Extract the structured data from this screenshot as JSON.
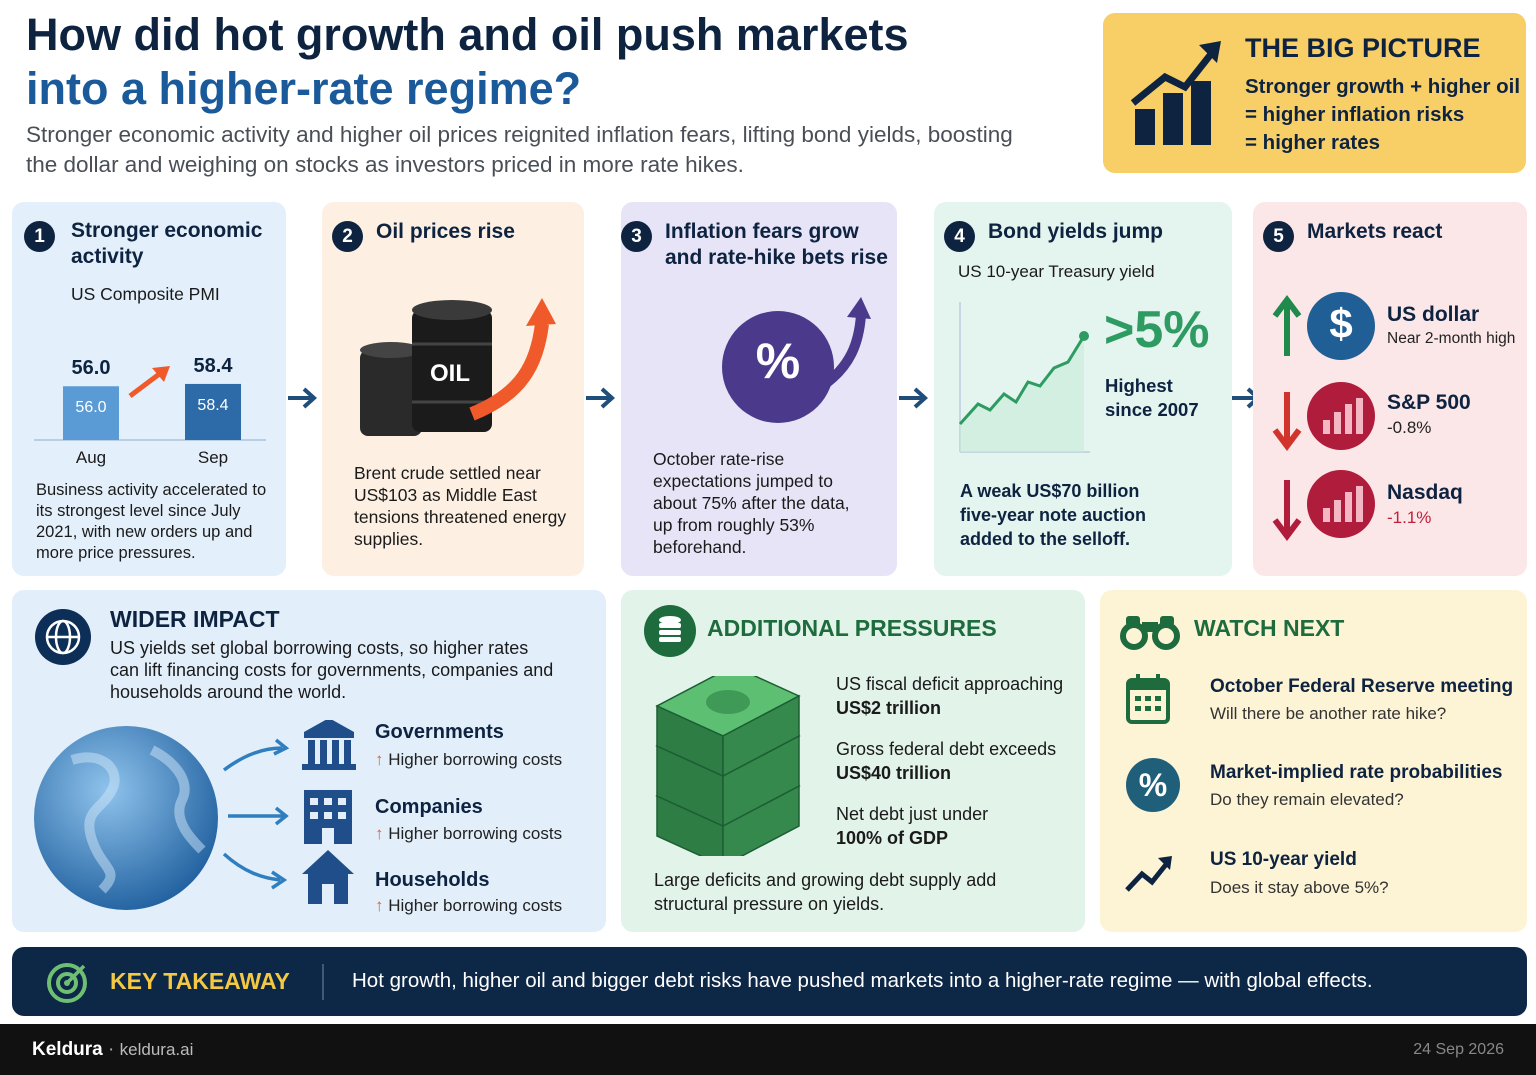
{
  "header": {
    "title_line1": "How did hot growth and oil push markets",
    "title_line2": "into a higher-rate regime?",
    "subtitle": "Stronger economic activity and higher oil prices reignited inflation fears, lifting bond yields, boosting the dollar and weighing on stocks as investors priced in more rate hikes."
  },
  "big_picture": {
    "title": "THE BIG PICTURE",
    "lines": [
      "Stronger growth + higher oil",
      "= higher inflation risks",
      "= higher rates"
    ]
  },
  "steps": [
    {
      "number": 1,
      "title": "Stronger economic activity",
      "subtitle": "US Composite PMI",
      "chart": {
        "type": "bar",
        "categories": [
          "Aug",
          "Sep"
        ],
        "values": [
          56.0,
          58.4
        ],
        "value_labels": [
          "56.0",
          "58.4"
        ],
        "colors": [
          "#5b9bd5",
          "#2c6aa8"
        ]
      },
      "text": "Business activity accelerated to its strongest level since July 2021, with new orders up and more price pressures."
    },
    {
      "number": 2,
      "title": "Oil prices rise",
      "icon_label": "OIL",
      "text": "Brent crude settled near US$103 as Middle East tensions threatened energy supplies."
    },
    {
      "number": 3,
      "title": "Inflation fears grow and rate-hike bets rise",
      "icon_label": "%",
      "text": "October rate-rise expectations jumped to about 75% after the data, up from roughly 53% beforehand."
    },
    {
      "number": 4,
      "title": "Bond yields jump",
      "subtitle": "US 10-year Treasury yield",
      "highlight": ">5%",
      "highlight_note": "Highest since 2007",
      "text": "A weak US$70 billion five-year note auction added to the selloff."
    },
    {
      "number": 5,
      "title": "Markets react",
      "items": [
        {
          "icon_label": "$",
          "name": "US dollar",
          "note": "Near 2-month high"
        },
        {
          "name": "S&P 500",
          "note": "-0.8%"
        },
        {
          "name": "Nasdaq",
          "note": "-1.1%"
        }
      ]
    }
  ],
  "wider_impact": {
    "title": "WIDER IMPACT",
    "text": "US yields set global borrowing costs, so higher rates can lift financing costs for governments, companies and households around the world.",
    "items": [
      {
        "name": "Governments",
        "note": "Higher borrowing costs"
      },
      {
        "name": "Companies",
        "note": "Higher borrowing costs"
      },
      {
        "name": "Households",
        "note": "Higher borrowing costs"
      }
    ]
  },
  "additional_pressures": {
    "title": "ADDITIONAL PRESSURES",
    "items": [
      {
        "text": "US fiscal deficit approaching",
        "bold": "US$2 trillion"
      },
      {
        "text": "Gross federal debt exceeds",
        "bold": "US$40 trillion"
      },
      {
        "text": "Net debt just under",
        "bold": "100% of GDP"
      }
    ],
    "footer": "Large deficits and growing debt supply add structural pressure on yields."
  },
  "watch_next": {
    "title": "WATCH NEXT",
    "items": [
      {
        "title": "October Federal Reserve meeting",
        "question": "Will there be another rate hike?"
      },
      {
        "icon_label": "%",
        "title": "Market-implied rate probabilities",
        "question": "Do they remain elevated?"
      },
      {
        "title": "US 10-year yield",
        "question": "Does it stay above 5%?"
      }
    ]
  },
  "key_takeaway": {
    "label": "KEY TAKEAWAY",
    "text": "Hot growth, higher oil and bigger debt risks have pushed markets into a higher-rate regime — with global effects."
  },
  "footer": {
    "brand": "Keldura",
    "separator": "·",
    "site": "keldura.ai",
    "date": "24 Sep 2026"
  }
}
